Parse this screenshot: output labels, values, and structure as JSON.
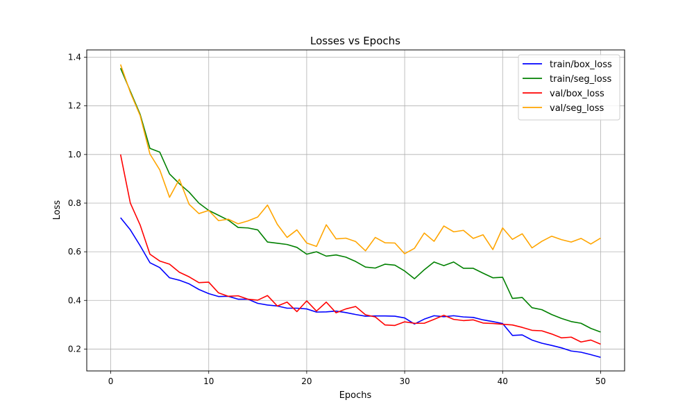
{
  "chart_data": {
    "type": "line",
    "title": "Losses vs Epochs",
    "xlabel": "Epochs",
    "ylabel": "Loss",
    "xlim": [
      -2.45,
      52.45
    ],
    "ylim": [
      0.11,
      1.43
    ],
    "xticks": [
      0,
      10,
      20,
      30,
      40,
      50
    ],
    "yticks": [
      0.2,
      0.4,
      0.6,
      0.8,
      1.0,
      1.2,
      1.4
    ],
    "grid": true,
    "legend_position": "top-right",
    "x": [
      1,
      2,
      3,
      4,
      5,
      6,
      7,
      8,
      9,
      10,
      11,
      12,
      13,
      14,
      15,
      16,
      17,
      18,
      19,
      20,
      21,
      22,
      23,
      24,
      25,
      26,
      27,
      28,
      29,
      30,
      31,
      32,
      33,
      34,
      35,
      36,
      37,
      38,
      39,
      40,
      41,
      42,
      43,
      44,
      45,
      46,
      47,
      48,
      49,
      50
    ],
    "series": [
      {
        "name": "train/box_loss",
        "color": "#0000ff",
        "values": [
          0.74,
          0.69,
          0.625,
          0.555,
          0.535,
          0.493,
          0.483,
          0.468,
          0.445,
          0.428,
          0.416,
          0.417,
          0.405,
          0.405,
          0.388,
          0.381,
          0.377,
          0.368,
          0.368,
          0.365,
          0.352,
          0.353,
          0.356,
          0.35,
          0.342,
          0.335,
          0.336,
          0.336,
          0.335,
          0.328,
          0.303,
          0.323,
          0.337,
          0.333,
          0.337,
          0.332,
          0.33,
          0.32,
          0.313,
          0.305,
          0.256,
          0.258,
          0.237,
          0.224,
          0.215,
          0.205,
          0.192,
          0.187,
          0.177,
          0.166
        ]
      },
      {
        "name": "train/seg_loss",
        "color": "#008000",
        "values": [
          1.355,
          1.26,
          1.165,
          1.025,
          1.01,
          0.92,
          0.88,
          0.845,
          0.8,
          0.77,
          0.75,
          0.73,
          0.7,
          0.698,
          0.69,
          0.64,
          0.635,
          0.63,
          0.618,
          0.59,
          0.6,
          0.582,
          0.587,
          0.578,
          0.56,
          0.537,
          0.533,
          0.549,
          0.545,
          0.521,
          0.489,
          0.526,
          0.558,
          0.543,
          0.558,
          0.532,
          0.532,
          0.512,
          0.493,
          0.495,
          0.408,
          0.412,
          0.37,
          0.362,
          0.342,
          0.326,
          0.313,
          0.306,
          0.285,
          0.27
        ]
      },
      {
        "name": "val/box_loss",
        "color": "#ff0000",
        "values": [
          1.0,
          0.8,
          0.71,
          0.59,
          0.562,
          0.549,
          0.516,
          0.497,
          0.473,
          0.475,
          0.431,
          0.417,
          0.419,
          0.405,
          0.401,
          0.42,
          0.377,
          0.393,
          0.354,
          0.398,
          0.356,
          0.393,
          0.349,
          0.365,
          0.375,
          0.341,
          0.332,
          0.299,
          0.297,
          0.312,
          0.306,
          0.306,
          0.322,
          0.339,
          0.322,
          0.317,
          0.32,
          0.307,
          0.305,
          0.302,
          0.299,
          0.289,
          0.277,
          0.275,
          0.262,
          0.246,
          0.249,
          0.229,
          0.237,
          0.22
        ]
      },
      {
        "name": "val/seg_loss",
        "color": "#ffa500",
        "values": [
          1.37,
          1.255,
          1.16,
          1.002,
          0.937,
          0.824,
          0.898,
          0.795,
          0.757,
          0.77,
          0.728,
          0.734,
          0.715,
          0.727,
          0.743,
          0.792,
          0.713,
          0.659,
          0.69,
          0.636,
          0.622,
          0.711,
          0.653,
          0.656,
          0.642,
          0.604,
          0.659,
          0.637,
          0.636,
          0.592,
          0.614,
          0.677,
          0.643,
          0.706,
          0.682,
          0.688,
          0.655,
          0.67,
          0.609,
          0.698,
          0.651,
          0.674,
          0.616,
          0.643,
          0.664,
          0.65,
          0.64,
          0.655,
          0.632,
          0.656
        ]
      }
    ]
  }
}
